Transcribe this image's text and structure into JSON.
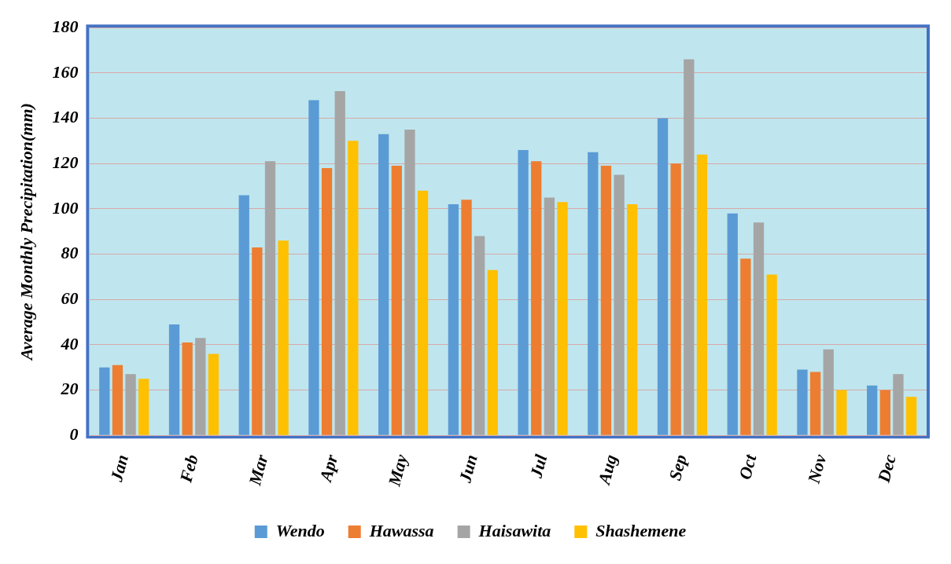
{
  "chart_data": {
    "type": "bar",
    "ylabel": "Average Monthly Precipitation(mm)",
    "categories": [
      "Jan",
      "Feb",
      "Mar",
      "Apr",
      "May",
      "Jun",
      "Jul",
      "Aug",
      "Sep",
      "Oct",
      "Nov",
      "Dec"
    ],
    "series": [
      {
        "name": "Wendo",
        "color": "#5b9bd5",
        "values": [
          30,
          49,
          106,
          148,
          133,
          102,
          126,
          125,
          140,
          98,
          29,
          22
        ]
      },
      {
        "name": "Hawassa",
        "color": "#ed7d31",
        "values": [
          31,
          41,
          83,
          118,
          119,
          104,
          121,
          119,
          120,
          78,
          28,
          20
        ]
      },
      {
        "name": "Haisawita",
        "color": "#a5a5a5",
        "values": [
          27,
          43,
          121,
          152,
          135,
          88,
          105,
          115,
          166,
          94,
          38,
          27
        ]
      },
      {
        "name": "Shashemene",
        "color": "#ffc000",
        "values": [
          25,
          36,
          86,
          130,
          108,
          73,
          103,
          102,
          124,
          71,
          20,
          17
        ]
      }
    ],
    "ylim": [
      0,
      180
    ],
    "yticks": [
      0,
      20,
      40,
      60,
      80,
      100,
      120,
      140,
      160,
      180
    ],
    "grid": "y",
    "legend": "bottom"
  }
}
